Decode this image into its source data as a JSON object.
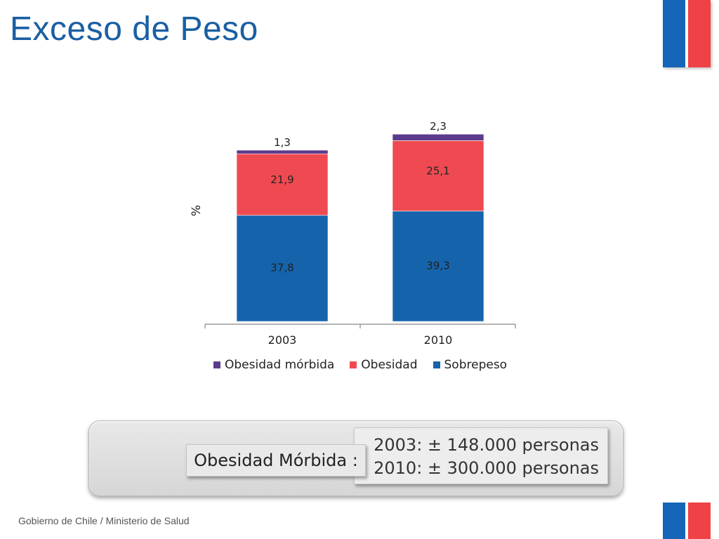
{
  "slide": {
    "title": "Exceso de Peso",
    "footer": "Gobierno de Chile / Ministerio de Salud"
  },
  "colors": {
    "title": "#1a5fa3",
    "flag_blue": "#1565b8",
    "flag_red": "#ef4146"
  },
  "chart_data": {
    "type": "bar",
    "stacked": true,
    "categories": [
      "2003",
      "2010"
    ],
    "series": [
      {
        "name": "Sobrepeso",
        "values": [
          37.8,
          39.3
        ],
        "labels": [
          "37,8",
          "39,3"
        ],
        "color": "#1563ab"
      },
      {
        "name": "Obesidad",
        "values": [
          21.9,
          25.1
        ],
        "labels": [
          "21,9",
          "25,1"
        ],
        "color": "#ef4a51"
      },
      {
        "name": "Obesidad mórbida",
        "values": [
          1.3,
          2.3
        ],
        "labels": [
          "1,3",
          "2,3"
        ],
        "color": "#5b3b8c"
      }
    ],
    "legend_order": [
      "Obesidad mórbida",
      "Obesidad",
      "Sobrepeso"
    ],
    "title": "",
    "xlabel": "",
    "ylabel": "%",
    "ylim": [
      0,
      70
    ],
    "grid": false,
    "legend": "bottom"
  },
  "info_panel": {
    "label": "Obesidad Mórbida :",
    "line_2003": "2003: ± 148.000 personas",
    "line_2010": "2010: ± 300.000 personas"
  }
}
